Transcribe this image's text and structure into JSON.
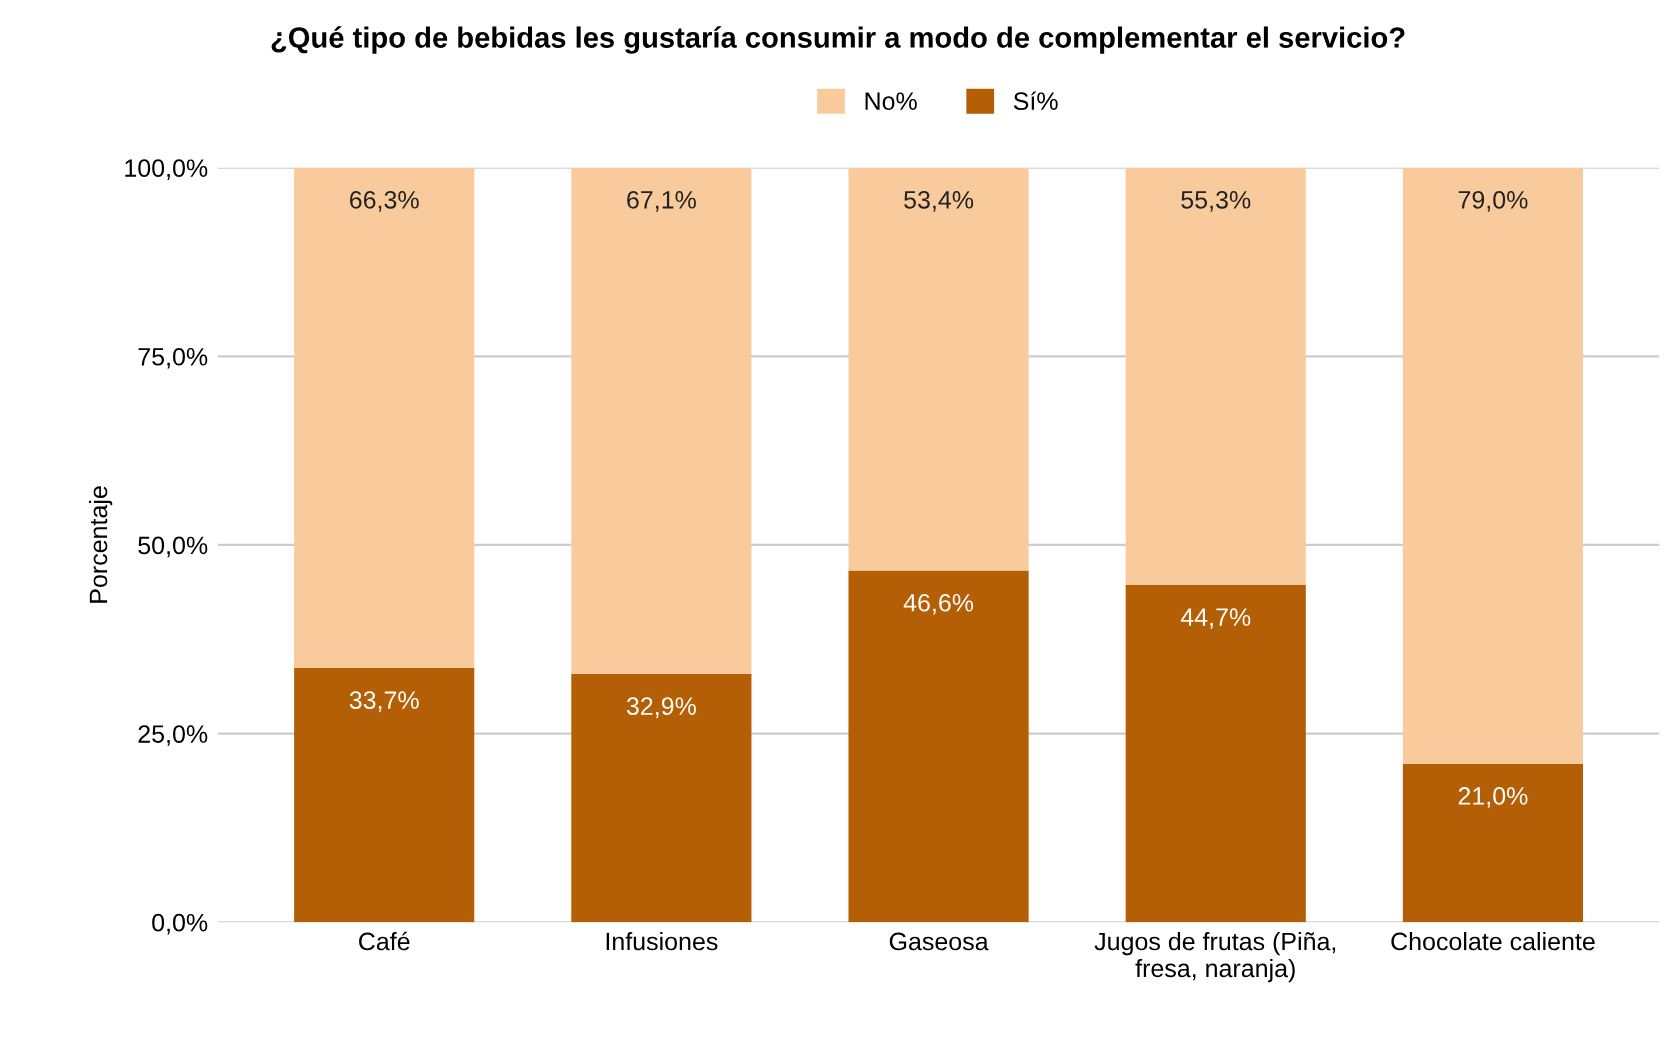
{
  "chart_data": {
    "type": "bar",
    "stacked": true,
    "title": "¿Qué tipo de bebidas les gustaría consumir a modo de complementar el servicio?",
    "ylabel": "Porcentaje",
    "categories": [
      "Café",
      "Infusiones",
      "Gaseosa",
      "Jugos de frutas (Piña,\nfresa, naranja)",
      "Chocolate caliente"
    ],
    "series": [
      {
        "name": "Sí%",
        "color": "#b45f06",
        "values": [
          33.7,
          32.9,
          46.6,
          44.7,
          21.0
        ],
        "value_labels": [
          "33,7%",
          "32,9%",
          "46,6%",
          "44,7%",
          "21,0%"
        ]
      },
      {
        "name": "No%",
        "color": "#f9cb9c",
        "values": [
          66.3,
          67.1,
          53.4,
          55.3,
          79.0
        ],
        "value_labels": [
          "66,3%",
          "67,1%",
          "53,4%",
          "55,3%",
          "79,0%"
        ]
      }
    ],
    "ylim": [
      0,
      100
    ],
    "yticks": [
      {
        "value": 0,
        "label": "0,0%"
      },
      {
        "value": 25,
        "label": "25,0%"
      },
      {
        "value": 50,
        "label": "50,0%"
      },
      {
        "value": 75,
        "label": "75,0%"
      },
      {
        "value": 100,
        "label": "100,0%"
      }
    ],
    "grid": "y",
    "legend": "top"
  }
}
